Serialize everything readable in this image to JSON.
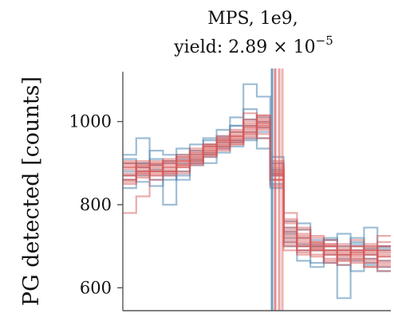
{
  "chart_data": {
    "type": "line",
    "title_line1": "MPS, 1e9,",
    "title_line2_prefix": "yield: ",
    "title_line2_mantissa": "2.89 × 10",
    "title_line2_exponent": "−5",
    "ylabel": "PG detected [counts]",
    "xlabel": "",
    "yticks": [
      600,
      800,
      1000
    ],
    "ylim": [
      545,
      1120
    ],
    "xlim": [
      0,
      20
    ],
    "grid": false,
    "legend": "none",
    "step": true,
    "colors": {
      "blue": "#4f86b3",
      "red": "#d65a5a"
    },
    "template": [
      880,
      885,
      888,
      893,
      902,
      915,
      930,
      945,
      958,
      972,
      990,
      880,
      820,
      735,
      715,
      695,
      685,
      680,
      678,
      675
    ],
    "series": [
      {
        "color": "blue",
        "values": [
          920,
          960,
          895,
          905,
          920,
          945,
          960,
          980,
          1010,
          1090,
          1060,
          875,
          760,
          740,
          705,
          715,
          730,
          700,
          745,
          695
        ]
      },
      {
        "color": "blue",
        "values": [
          840,
          880,
          860,
          800,
          880,
          900,
          915,
          925,
          955,
          975,
          935,
          850,
          735,
          700,
          690,
          660,
          655,
          640,
          655,
          640
        ]
      },
      {
        "color": "blue",
        "values": [
          900,
          900,
          910,
          880,
          935,
          920,
          945,
          965,
          990,
          1005,
          985,
          915,
          745,
          755,
          700,
          715,
          670,
          710,
          690,
          700
        ]
      },
      {
        "color": "blue",
        "values": [
          870,
          855,
          845,
          870,
          860,
          895,
          920,
          935,
          940,
          955,
          975,
          885,
          710,
          665,
          650,
          680,
          575,
          665,
          695,
          650
        ]
      },
      {
        "color": "blue",
        "values": [
          910,
          890,
          930,
          920,
          910,
          905,
          955,
          960,
          990,
          1030,
          1010,
          870,
          720,
          705,
          700,
          720,
          680,
          705,
          680,
          665
        ]
      },
      {
        "color": "blue",
        "values": [
          880,
          900,
          885,
          860,
          900,
          930,
          925,
          950,
          975,
          960,
          1000,
          840,
          700,
          690,
          660,
          690,
          700,
          690,
          660,
          700
        ]
      },
      {
        "color": "blue",
        "values": [
          860,
          870,
          895,
          900,
          870,
          910,
          900,
          940,
          950,
          990,
          960,
          900,
          730,
          720,
          715,
          700,
          690,
          720,
          670,
          690
        ]
      },
      {
        "color": "red",
        "values": [
          780,
          820,
          880,
          875,
          895,
          905,
          925,
          945,
          955,
          985,
          1000,
          875,
          745,
          720,
          700,
          690,
          680,
          700,
          670,
          680
        ]
      },
      {
        "color": "red",
        "values": [
          900,
          890,
          895,
          905,
          910,
          920,
          940,
          950,
          970,
          990,
          1015,
          860,
          780,
          705,
          710,
          700,
          690,
          675,
          690,
          700
        ]
      },
      {
        "color": "red",
        "values": [
          860,
          875,
          870,
          880,
          890,
          900,
          920,
          930,
          945,
          960,
          980,
          880,
          720,
          690,
          680,
          665,
          665,
          660,
          650,
          675
        ]
      },
      {
        "color": "red",
        "values": [
          890,
          900,
          880,
          895,
          915,
          925,
          935,
          955,
          965,
          975,
          995,
          895,
          760,
          740,
          720,
          705,
          700,
          690,
          700,
          710
        ]
      },
      {
        "color": "red",
        "values": [
          870,
          880,
          905,
          900,
          895,
          915,
          945,
          940,
          960,
          1000,
          970,
          870,
          730,
          700,
          695,
          700,
          690,
          685,
          665,
          660
        ]
      },
      {
        "color": "red",
        "values": [
          895,
          870,
          890,
          870,
          905,
          910,
          920,
          960,
          950,
          965,
          990,
          860,
          700,
          715,
          690,
          680,
          670,
          690,
          680,
          665
        ]
      },
      {
        "color": "red",
        "values": [
          850,
          865,
          880,
          910,
          880,
          895,
          930,
          945,
          975,
          995,
          1010,
          900,
          740,
          725,
          705,
          690,
          685,
          680,
          690,
          690
        ]
      },
      {
        "color": "red",
        "values": [
          905,
          895,
          875,
          885,
          920,
          930,
          915,
          935,
          945,
          970,
          985,
          845,
          710,
          685,
          675,
          690,
          655,
          665,
          650,
          640
        ]
      },
      {
        "color": "red",
        "values": [
          875,
          890,
          900,
          880,
          875,
          905,
          935,
          955,
          980,
          1005,
          1000,
          885,
          765,
          745,
          725,
          715,
          705,
          715,
          705,
          725
        ]
      },
      {
        "color": "red",
        "values": [
          860,
          880,
          870,
          890,
          905,
          935,
          940,
          965,
          960,
          975,
          995,
          870,
          690,
          680,
          700,
          670,
          690,
          670,
          685,
          650
        ]
      },
      {
        "color": "red",
        "values": [
          885,
          875,
          885,
          905,
          890,
          900,
          925,
          940,
          955,
          985,
          960,
          905,
          725,
          710,
          690,
          680,
          680,
          700,
          695,
          675
        ]
      },
      {
        "color": "red",
        "values": [
          870,
          905,
          895,
          880,
          900,
          920,
          930,
          950,
          965,
          1020,
          1005,
          880,
          735,
          720,
          710,
          705,
          695,
          680,
          660,
          685
        ]
      },
      {
        "color": "red",
        "values": [
          890,
          880,
          860,
          890,
          915,
          910,
          945,
          935,
          975,
          980,
          990,
          860,
          715,
          700,
          690,
          685,
          675,
          690,
          680,
          700
        ]
      },
      {
        "color": "red",
        "values": [
          855,
          895,
          880,
          900,
          895,
          925,
          920,
          955,
          965,
          990,
          1015,
          875,
          755,
          690,
          705,
          660,
          680,
          685,
          690,
          655
        ]
      },
      {
        "color": "red",
        "values": [
          900,
          885,
          900,
          875,
          905,
          915,
          940,
          960,
          950,
          970,
          985,
          890,
          705,
          730,
          695,
          700,
          665,
          670,
          700,
          690
        ]
      }
    ],
    "vertical_spike": {
      "x": 11.55,
      "color_blue": "#4f86b3",
      "color_red": "#d65a5a"
    }
  }
}
